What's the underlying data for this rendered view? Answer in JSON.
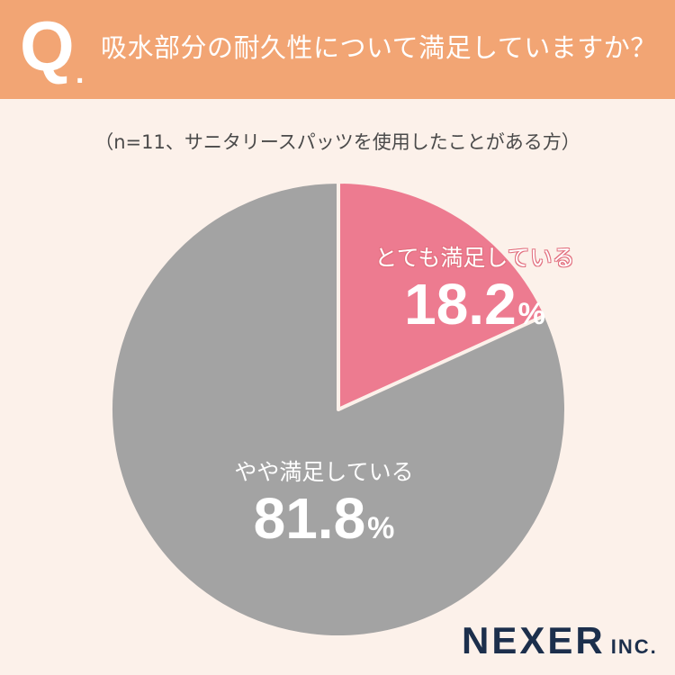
{
  "header": {
    "q_mark": "Q",
    "q_dot": ".",
    "question": "吸水部分の耐久性について満足していますか？"
  },
  "subtitle": "（n=11、サニタリースパッツを使用したことがある方）",
  "chart_data": {
    "type": "pie",
    "title": "吸水部分の耐久性について満足していますか？",
    "subtitle": "（n=11、サニタリースパッツを使用したことがある方）",
    "unit": "%",
    "slices": [
      {
        "label": "とても満足している",
        "value": 18.2,
        "display": "18.2",
        "color": "#ed7b90"
      },
      {
        "label": "やや満足している",
        "value": 81.8,
        "display": "81.8",
        "color": "#a3a3a3"
      }
    ],
    "start_angle_deg": 0,
    "direction": "clockwise"
  },
  "logo": {
    "name": "NEXER",
    "suffix": "INC."
  },
  "colors": {
    "header_bg": "#f2a574",
    "page_bg": "#fcf1ea",
    "logo": "#1c2f4c"
  }
}
